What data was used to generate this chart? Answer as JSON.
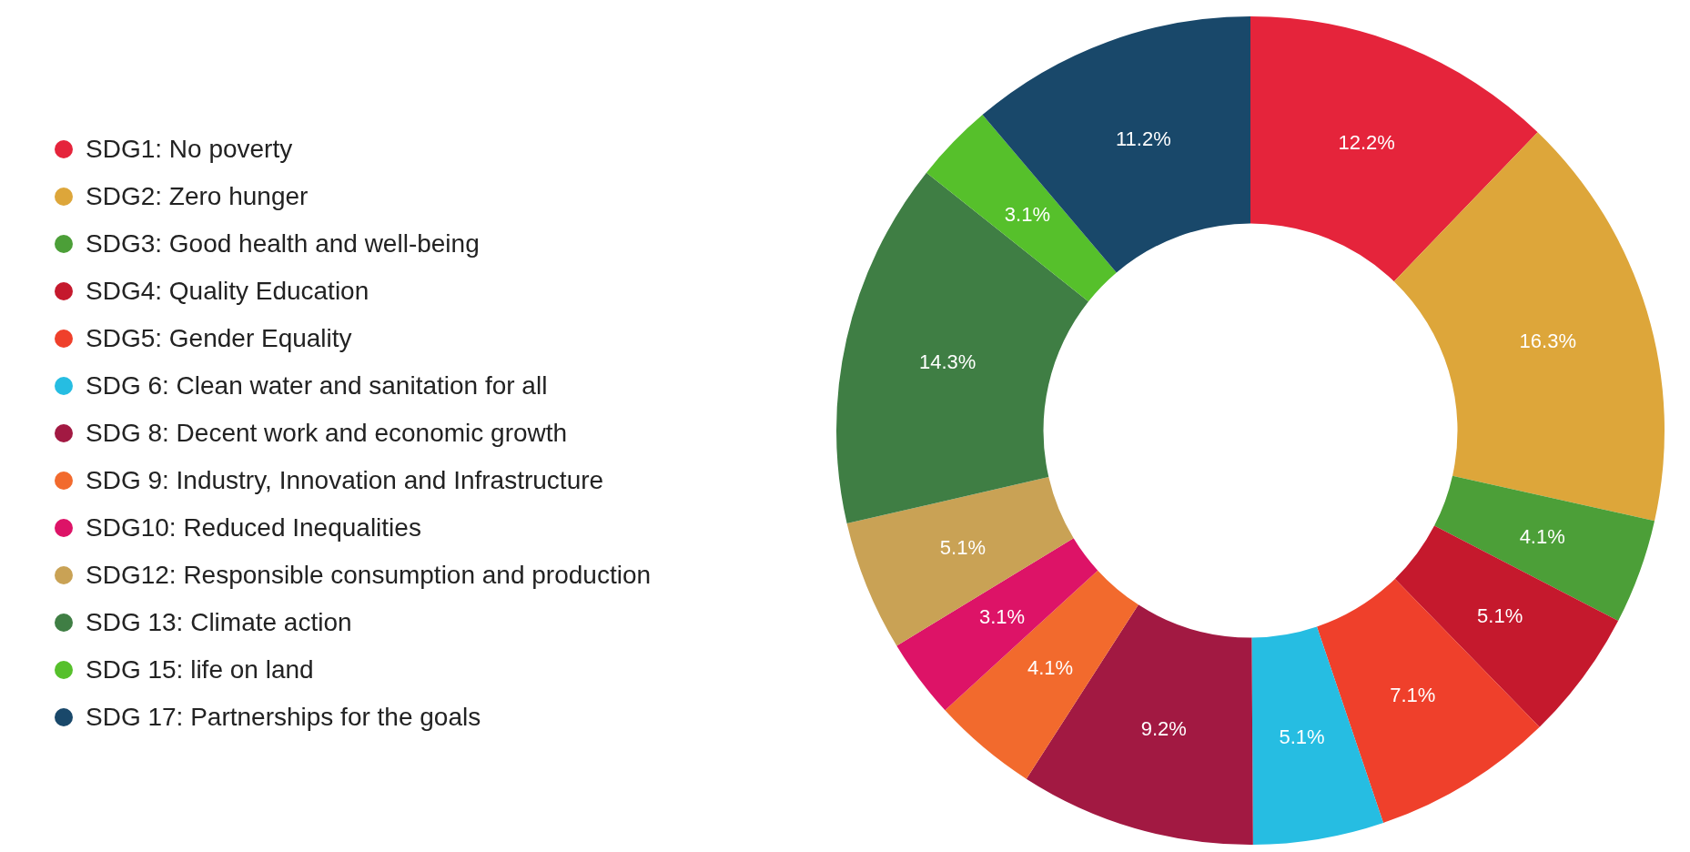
{
  "chart_data": {
    "type": "donut",
    "categories": [
      "SDG1: No poverty",
      "SDG2: Zero hunger",
      "SDG3: Good health and well-being",
      "SDG4: Quality Education",
      "SDG5: Gender Equality",
      "SDG 6: Clean water and sanitation for all",
      "SDG 8: Decent work and economic growth",
      "SDG 9: Industry, Innovation and Infrastructure",
      "SDG10: Reduced Inequalities",
      "SDG12: Responsible consumption and production",
      "SDG 13: Climate action",
      "SDG 15: life on land",
      "SDG 17: Partnerships for the goals"
    ],
    "values": [
      12.2,
      16.3,
      4.1,
      5.1,
      7.1,
      5.1,
      9.2,
      4.1,
      3.1,
      5.1,
      14.3,
      3.1,
      11.2
    ],
    "value_labels": [
      "12.2%",
      "16.3%",
      "4.1%",
      "5.1%",
      "7.1%",
      "5.1%",
      "9.2%",
      "4.1%",
      "3.1%",
      "5.1%",
      "14.3%",
      "3.1%",
      "11.2%"
    ],
    "colors": [
      "#e5243b",
      "#dda63a",
      "#4c9f38",
      "#c5192d",
      "#ef402b",
      "#26bde2",
      "#a21942",
      "#f26a2d",
      "#dd1367",
      "#c9a255",
      "#3f7e44",
      "#56c02b",
      "#19486a"
    ],
    "legend": "left",
    "marker": "circle"
  }
}
